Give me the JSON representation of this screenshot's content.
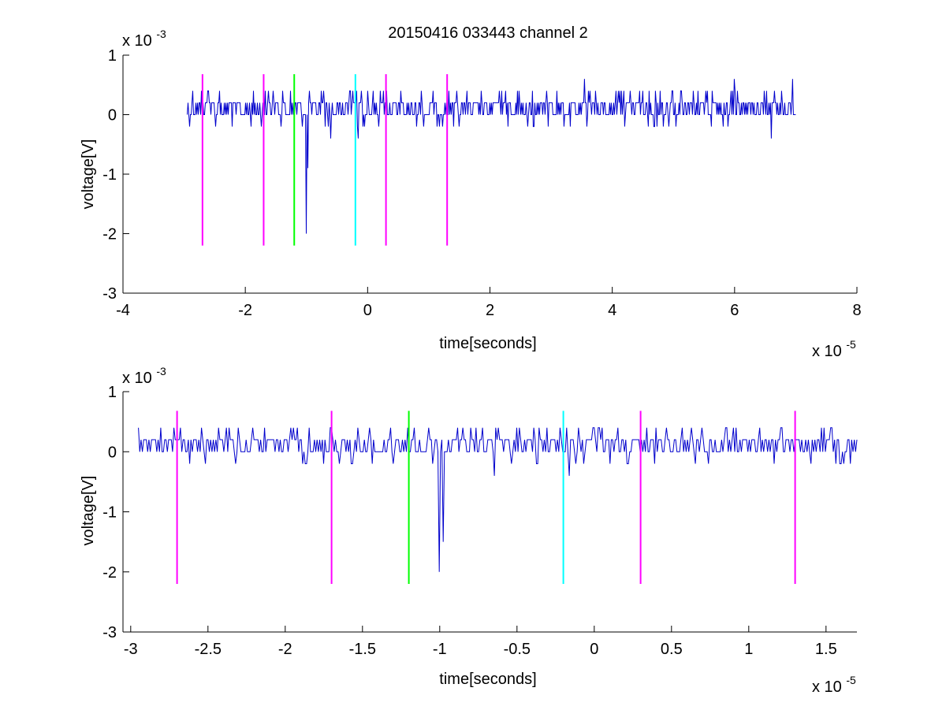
{
  "figure_title": "20150416 033443 channel 2",
  "colors": {
    "signal": "#0000cc",
    "magenta": "#ff00ff",
    "green": "#00ff00",
    "cyan": "#00ffff",
    "axis": "#000000"
  },
  "chart_data": [
    {
      "type": "line",
      "title": "20150416 033443 channel 2",
      "xlabel": "time[seconds]",
      "ylabel": "voltage[V]",
      "x_exponent_label": "x 10",
      "x_exponent": "-5",
      "y_exponent_label": "x 10",
      "y_exponent": "-3",
      "x_unit_scale": 1e-05,
      "y_unit_scale": 0.001,
      "xlim": [
        -4,
        8
      ],
      "ylim": [
        -3,
        1
      ],
      "xticks": [
        -4,
        -2,
        0,
        2,
        4,
        6,
        8
      ],
      "xtick_labels": [
        "-4",
        "-2",
        "0",
        "2",
        "4",
        "6",
        "8"
      ],
      "yticks": [
        1,
        0,
        -1,
        -2,
        -3
      ],
      "ytick_labels": [
        "1",
        "0",
        "-1",
        "-2",
        "-3"
      ],
      "grid": false,
      "series": [
        {
          "color": "#0000cc",
          "x_start": -2.95,
          "x_end": 7.0,
          "baseline_levels": [
            0,
            0.2
          ],
          "spikes": [
            {
              "x": -1.0,
              "y": -2.0
            },
            {
              "x": -0.98,
              "y": -0.9
            },
            {
              "x": -0.6,
              "y": -0.4
            },
            {
              "x": -0.15,
              "y": -0.4
            },
            {
              "x": 3.55,
              "y": 0.6
            },
            {
              "x": 6.6,
              "y": -0.4
            },
            {
              "x": 6.95,
              "y": 0.6
            },
            {
              "x": 6.0,
              "y": 0.6
            },
            {
              "x": 4.5,
              "y": 0.4
            }
          ]
        }
      ],
      "vlines": [
        {
          "x": -2.7,
          "color": "#ff00ff",
          "y_range": [
            -2.2,
            0.68
          ]
        },
        {
          "x": -1.7,
          "color": "#ff00ff",
          "y_range": [
            -2.2,
            0.68
          ]
        },
        {
          "x": -1.2,
          "color": "#00ff00",
          "y_range": [
            -2.2,
            0.68
          ]
        },
        {
          "x": -0.2,
          "color": "#00ffff",
          "y_range": [
            -2.2,
            0.68
          ]
        },
        {
          "x": 0.3,
          "color": "#ff00ff",
          "y_range": [
            -2.2,
            0.68
          ]
        },
        {
          "x": 1.3,
          "color": "#ff00ff",
          "y_range": [
            -2.2,
            0.68
          ]
        }
      ]
    },
    {
      "type": "line",
      "xlabel": "time[seconds]",
      "ylabel": "voltage[V]",
      "x_exponent_label": "x 10",
      "x_exponent": "-5",
      "y_exponent_label": "x 10",
      "y_exponent": "-3",
      "x_unit_scale": 1e-05,
      "y_unit_scale": 0.001,
      "xlim": [
        -3.05,
        1.7
      ],
      "ylim": [
        -3,
        1
      ],
      "xticks": [
        -3,
        -2.5,
        -2,
        -1.5,
        -1,
        -0.5,
        0,
        0.5,
        1,
        1.5
      ],
      "xtick_labels": [
        "-3",
        "-2.5",
        "-2",
        "-1.5",
        "-1",
        "-0.5",
        "0",
        "0.5",
        "1",
        "1.5"
      ],
      "yticks": [
        1,
        0,
        -1,
        -2,
        -3
      ],
      "ytick_labels": [
        "1",
        "0",
        "-1",
        "-2",
        "-3"
      ],
      "grid": false,
      "series": [
        {
          "color": "#0000cc",
          "x_start": -2.95,
          "x_end": 1.7,
          "baseline_levels": [
            0,
            0.2
          ],
          "spikes": [
            {
              "x": -2.3,
              "y": 0.4
            },
            {
              "x": -1.45,
              "y": 0.4
            },
            {
              "x": -1.3,
              "y": 0.4
            },
            {
              "x": -1.3,
              "y": -0.2
            },
            {
              "x": -1.0,
              "y": -2.0
            },
            {
              "x": -0.98,
              "y": -1.5
            },
            {
              "x": -0.65,
              "y": -0.4
            },
            {
              "x": -0.5,
              "y": 0.4
            },
            {
              "x": -0.16,
              "y": -0.4
            },
            {
              "x": -0.1,
              "y": 0.4
            },
            {
              "x": 0.4,
              "y": 0.4
            },
            {
              "x": 0.9,
              "y": 0.4
            }
          ]
        }
      ],
      "vlines": [
        {
          "x": -2.7,
          "color": "#ff00ff",
          "y_range": [
            -2.2,
            0.68
          ]
        },
        {
          "x": -1.7,
          "color": "#ff00ff",
          "y_range": [
            -2.2,
            0.68
          ]
        },
        {
          "x": -1.2,
          "color": "#00ff00",
          "y_range": [
            -2.2,
            0.68
          ]
        },
        {
          "x": -0.2,
          "color": "#00ffff",
          "y_range": [
            -2.2,
            0.68
          ]
        },
        {
          "x": 0.3,
          "color": "#ff00ff",
          "y_range": [
            -2.2,
            0.68
          ]
        },
        {
          "x": 1.3,
          "color": "#ff00ff",
          "y_range": [
            -2.2,
            0.68
          ]
        }
      ]
    }
  ]
}
